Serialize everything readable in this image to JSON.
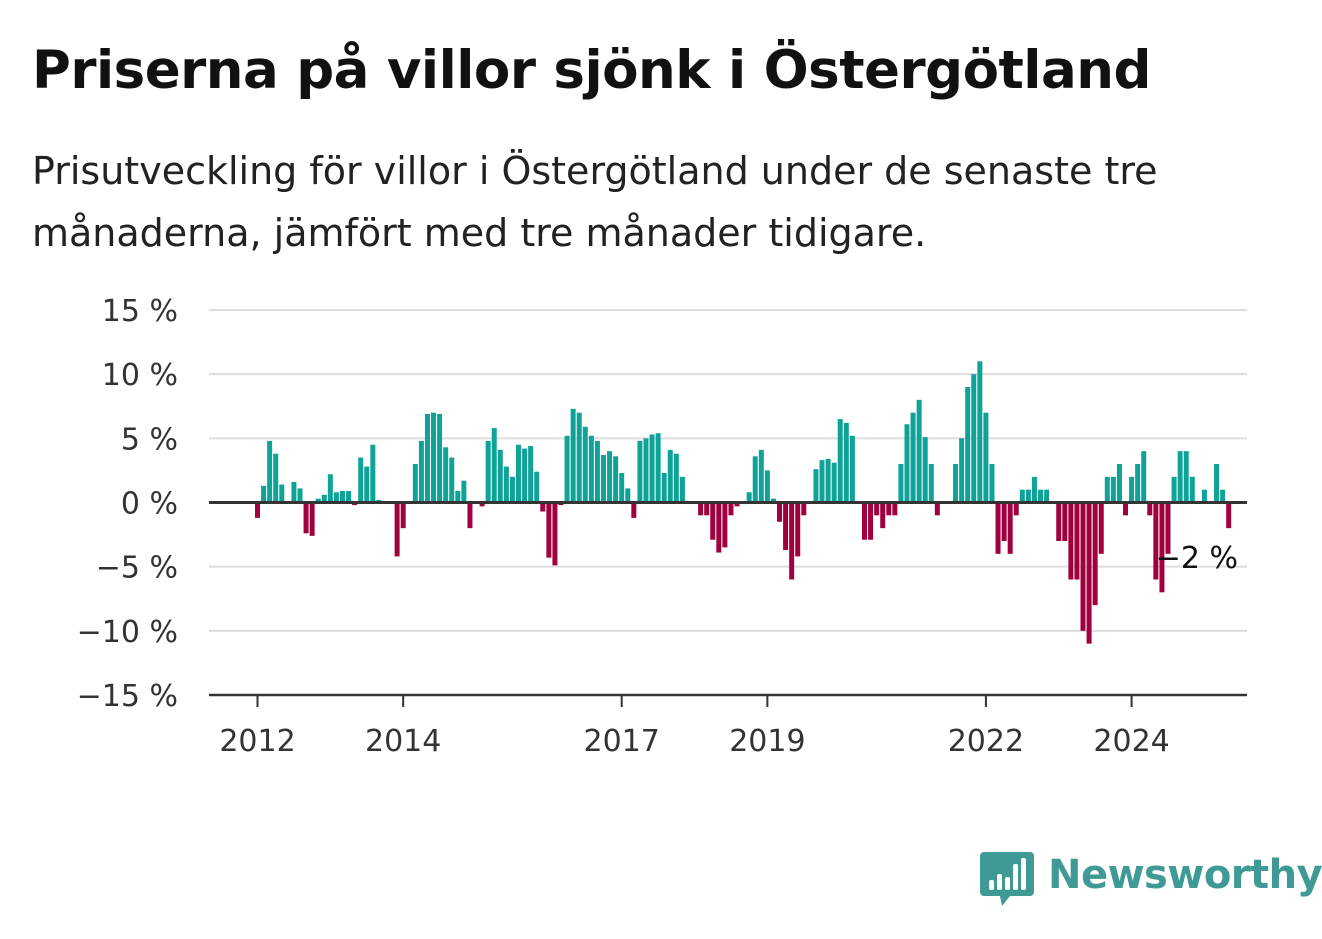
{
  "title": "Priserna på villor sjönk i Östergötland",
  "subtitle": "Prisutveckling för villor i Östergötland under de senaste tre månaderna, jämfört med tre månader tidigare.",
  "brand": "Newsworthy",
  "colors": {
    "positive": "#0fa398",
    "negative": "#a0003e",
    "grid": "#dddddd",
    "axis": "#333333"
  },
  "chart_data": {
    "type": "bar",
    "ylim": [
      -15,
      15
    ],
    "yticks": [
      15,
      10,
      5,
      0,
      -5,
      -10,
      -15
    ],
    "ytick_labels": [
      "15 %",
      "10 %",
      "5 %",
      "0 %",
      "−5 %",
      "−10 %",
      "−15 %"
    ],
    "xticks": [
      {
        "label": "2012",
        "index": 0
      },
      {
        "label": "2014",
        "index": 24
      },
      {
        "label": "2017",
        "index": 60
      },
      {
        "label": "2019",
        "index": 84
      },
      {
        "label": "2022",
        "index": 120
      },
      {
        "label": "2024",
        "index": 144
      }
    ],
    "values": [
      -1.2,
      1.3,
      4.8,
      3.8,
      1.4,
      0,
      1.6,
      1.1,
      -2.4,
      -2.6,
      0.3,
      0.6,
      2.2,
      0.8,
      0.9,
      0.9,
      -0.2,
      3.5,
      2.8,
      4.5,
      0.2,
      0,
      0,
      -4.2,
      -2.0,
      0,
      3.0,
      4.8,
      6.9,
      7.0,
      6.9,
      4.3,
      3.5,
      0.9,
      1.7,
      -2.0,
      0,
      -0.3,
      4.8,
      5.8,
      4.1,
      2.8,
      2.0,
      4.5,
      4.2,
      4.4,
      2.4,
      -0.7,
      -4.3,
      -4.9,
      -0.2,
      5.2,
      7.3,
      7.0,
      5.9,
      5.2,
      4.8,
      3.7,
      4.0,
      3.6,
      2.3,
      1.1,
      -1.2,
      4.8,
      5.0,
      5.3,
      5.4,
      2.3,
      4.1,
      3.8,
      2.0,
      0,
      0,
      -1.0,
      -1.0,
      -2.9,
      -3.9,
      -3.5,
      -1.0,
      -0.3,
      0,
      0.8,
      3.6,
      4.1,
      2.5,
      0.3,
      -1.5,
      -3.7,
      -6.0,
      -4.2,
      -1.0,
      0,
      2.6,
      3.3,
      3.4,
      3.1,
      6.5,
      6.2,
      5.2,
      0,
      -2.9,
      -2.9,
      -1.0,
      -2.0,
      -1.0,
      -1.0,
      3.0,
      6.1,
      7.0,
      8.0,
      5.1,
      3.0,
      -1.0,
      0,
      0,
      3.0,
      5.0,
      9.0,
      10.0,
      11.0,
      7.0,
      3.0,
      -4.0,
      -3.0,
      -4.0,
      -1.0,
      1.0,
      1.0,
      2.0,
      1.0,
      1.0,
      0,
      -3.0,
      -3.0,
      -6.0,
      -6.0,
      -10.0,
      -11.0,
      -8.0,
      -4.0,
      2.0,
      2.0,
      3.0,
      -1.0,
      2.0,
      3.0,
      4.0,
      -1.0,
      -6.0,
      -7.0,
      -4.0,
      2.0,
      4.0,
      4.0,
      2.0,
      0,
      1.0,
      0,
      3.0,
      1.0,
      -2.0
    ],
    "last_value_label": "−2 %"
  }
}
